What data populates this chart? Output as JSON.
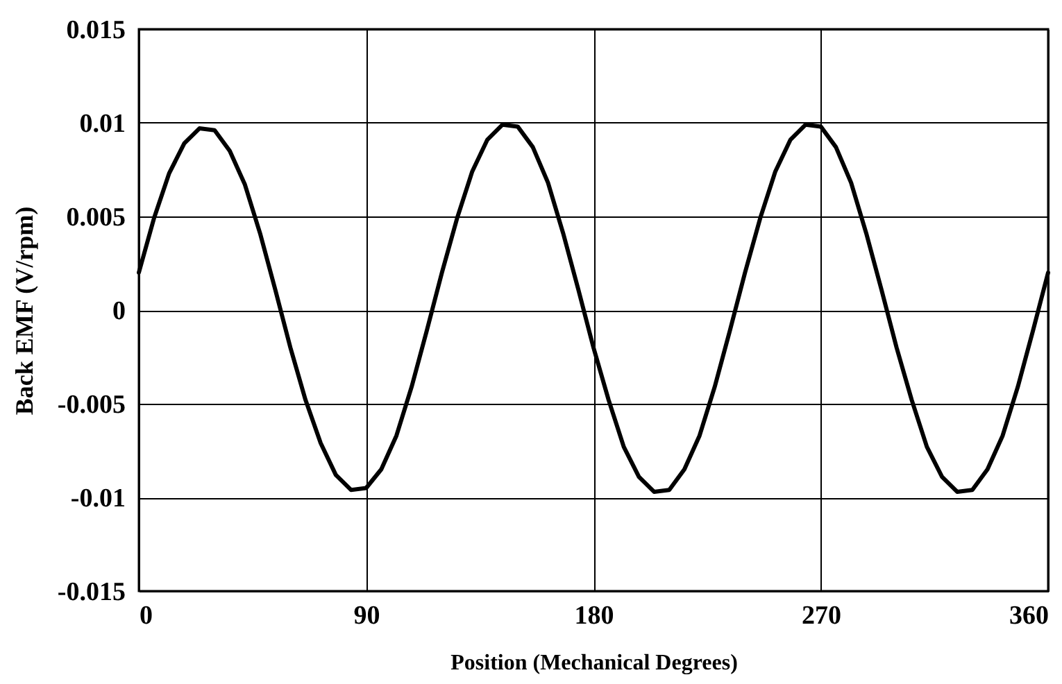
{
  "chart_data": {
    "type": "line",
    "xlabel": "Position (Mechanical Degrees)",
    "ylabel": "Back EMF (V/rpm)",
    "x": [
      0,
      6,
      12,
      18,
      24,
      30,
      36,
      42,
      48,
      54,
      60,
      66,
      72,
      78,
      84,
      90,
      96,
      102,
      108,
      114,
      120,
      126,
      132,
      138,
      144,
      150,
      156,
      162,
      168,
      174,
      180,
      186,
      192,
      198,
      204,
      210,
      216,
      222,
      228,
      234,
      240,
      246,
      252,
      258,
      264,
      270,
      276,
      282,
      288,
      294,
      300,
      306,
      312,
      318,
      324,
      330,
      336,
      342,
      348,
      354,
      360
    ],
    "series": [
      {
        "color": "#000000",
        "values": [
          0.002,
          0.0049,
          0.0073,
          0.0089,
          0.0097,
          0.0096,
          0.0085,
          0.0067,
          0.0041,
          0.0011,
          -0.002,
          -0.0048,
          -0.0071,
          -0.0088,
          -0.0096,
          -0.0095,
          -0.0085,
          -0.0067,
          -0.0041,
          -0.0011,
          0.002,
          0.0049,
          0.0074,
          0.0091,
          0.0099,
          0.0098,
          0.0087,
          0.0068,
          0.0041,
          0.0011,
          -0.002,
          -0.0048,
          -0.0073,
          -0.0089,
          -0.0097,
          -0.0096,
          -0.0085,
          -0.0067,
          -0.0041,
          -0.0011,
          0.002,
          0.0049,
          0.0074,
          0.0091,
          0.0099,
          0.0098,
          0.0087,
          0.0068,
          0.0041,
          0.0011,
          -0.002,
          -0.0048,
          -0.0073,
          -0.0089,
          -0.0097,
          -0.0096,
          -0.0085,
          -0.0067,
          -0.0041,
          -0.0011,
          0.002
        ]
      }
    ],
    "xlim": [
      0,
      360
    ],
    "xticks": [
      0,
      90,
      180,
      270,
      360
    ],
    "ylim": [
      -0.015,
      0.015
    ],
    "yticks": [
      -0.015,
      -0.01,
      -0.005,
      0,
      0.005,
      0.01,
      0.015
    ],
    "grid": true,
    "legend": false,
    "marker": "none",
    "line_style": "solid"
  }
}
